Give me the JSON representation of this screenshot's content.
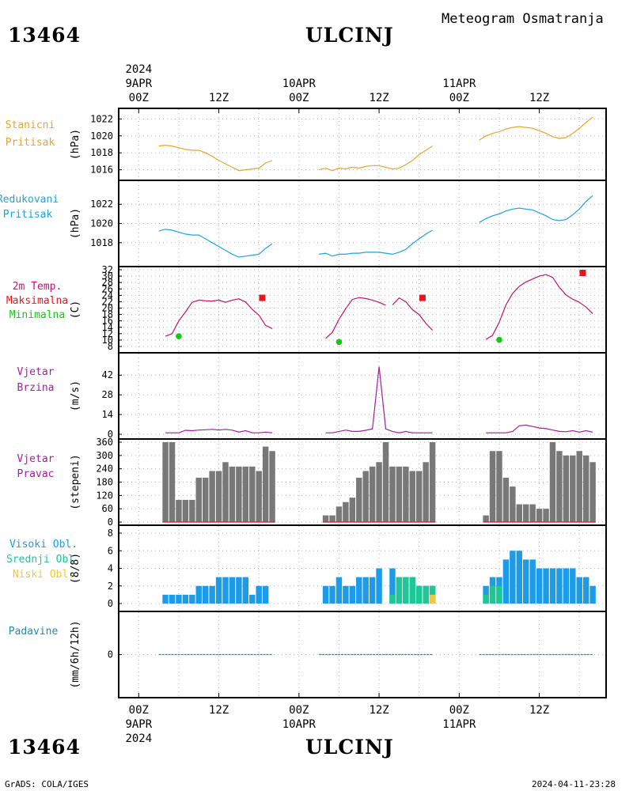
{
  "header": {
    "station_id": "13464",
    "station_name": "ULCINJ",
    "subtitle": "Meteogram Osmatranja"
  },
  "footer": {
    "station_id": "13464",
    "station_name": "ULCINJ",
    "credit": "GrADS: COLA/IGES",
    "timestamp": "2024-04-11-23:28"
  },
  "colors": {
    "station_pressure": "#e8a52c",
    "reduced_pressure": "#1fa3dc",
    "temperature": "#c8106e",
    "tmax": "#e8141e",
    "tmin": "#14c814",
    "wind": "#a01ea0",
    "wind_dir": "#787878",
    "cloud_high": "#1e9be6",
    "cloud_mid": "#1ec896",
    "cloud_low": "#f0c83c",
    "precip": "#1e8cb4"
  },
  "chart_data": [
    {
      "type": "line",
      "panel_label": [
        "Stanicni",
        "Pritisak"
      ],
      "ylabel": "(hPa)",
      "ylim": [
        1015.5,
        1022.5
      ],
      "yticks": [
        1016,
        1018,
        1020,
        1022
      ],
      "x_unit": "hours since 2024-04-09 00Z",
      "segments": [
        {
          "x": [
            3,
            4,
            5,
            6,
            7,
            8,
            9,
            10,
            11,
            12,
            13,
            14,
            15,
            16,
            17,
            18,
            19,
            20
          ],
          "y": [
            1018.8,
            1018.9,
            1018.8,
            1018.6,
            1018.4,
            1018.3,
            1018.3,
            1018.0,
            1017.6,
            1017.1,
            1016.7,
            1016.3,
            1015.9,
            1016.0,
            1016.1,
            1016.2,
            1016.8,
            1017.1
          ]
        },
        {
          "x": [
            27,
            28,
            29,
            30,
            31,
            32,
            33,
            34,
            35,
            36,
            37,
            38,
            39,
            40,
            41,
            42,
            43,
            44
          ],
          "y": [
            1016.0,
            1016.2,
            1015.9,
            1016.2,
            1016.1,
            1016.3,
            1016.2,
            1016.4,
            1016.5,
            1016.5,
            1016.3,
            1016.1,
            1016.2,
            1016.6,
            1017.1,
            1017.8,
            1018.3,
            1018.8
          ]
        },
        {
          "x": [
            51,
            52,
            53,
            54,
            55,
            56,
            57,
            58,
            59,
            60,
            61,
            62,
            63,
            64,
            65,
            66,
            67,
            68
          ],
          "y": [
            1019.5,
            1020.0,
            1020.3,
            1020.5,
            1020.8,
            1021.0,
            1021.1,
            1021.0,
            1020.9,
            1020.6,
            1020.3,
            1019.9,
            1019.7,
            1019.8,
            1020.3,
            1020.9,
            1021.6,
            1022.2
          ]
        }
      ]
    },
    {
      "type": "line",
      "panel_label": [
        "Redukovani",
        "Pritisak"
      ],
      "ylabel": "(hPa)",
      "ylim": [
        1016.5,
        1023.5
      ],
      "yticks": [
        1018,
        1020,
        1022
      ],
      "x_unit": "hours since 2024-04-09 00Z",
      "segments": [
        {
          "x": [
            3,
            4,
            5,
            6,
            7,
            8,
            9,
            10,
            11,
            12,
            13,
            14,
            15,
            16,
            17,
            18,
            19,
            20
          ],
          "y": [
            1019.2,
            1019.4,
            1019.3,
            1019.1,
            1018.9,
            1018.8,
            1018.8,
            1018.4,
            1018.0,
            1017.6,
            1017.2,
            1016.8,
            1016.5,
            1016.6,
            1016.7,
            1016.8,
            1017.4,
            1017.9
          ]
        },
        {
          "x": [
            27,
            28,
            29,
            30,
            31,
            32,
            33,
            34,
            35,
            36,
            37,
            38,
            39,
            40,
            41,
            42,
            43,
            44
          ],
          "y": [
            1016.8,
            1016.9,
            1016.6,
            1016.8,
            1016.8,
            1016.9,
            1016.9,
            1017.0,
            1017.0,
            1017.0,
            1016.9,
            1016.8,
            1017.0,
            1017.3,
            1017.9,
            1018.4,
            1018.9,
            1019.3
          ]
        },
        {
          "x": [
            51,
            52,
            53,
            54,
            55,
            56,
            57,
            58,
            59,
            60,
            61,
            62,
            63,
            64,
            65,
            66,
            67,
            68
          ],
          "y": [
            1020.1,
            1020.5,
            1020.8,
            1021.0,
            1021.3,
            1021.5,
            1021.6,
            1021.5,
            1021.4,
            1021.1,
            1020.8,
            1020.4,
            1020.3,
            1020.4,
            1020.9,
            1021.5,
            1022.3,
            1022.9
          ]
        }
      ]
    },
    {
      "type": "line",
      "panel_label": [
        "2m Temp.",
        "Maksimalna",
        "Minimalna"
      ],
      "ylabel": "(C)",
      "ylim": [
        8,
        32
      ],
      "yticks": [
        8,
        10,
        12,
        14,
        16,
        18,
        20,
        22,
        24,
        26,
        28,
        30,
        32
      ],
      "x_unit": "hours since 2024-04-09 00Z",
      "segments": [
        {
          "x": [
            4,
            5,
            6,
            7,
            8,
            9,
            10,
            11,
            12,
            13,
            14,
            15,
            16,
            17,
            18,
            19,
            20
          ],
          "y": [
            11.2,
            12.0,
            16.0,
            18.8,
            21.8,
            22.5,
            22.3,
            22.2,
            22.5,
            21.8,
            22.5,
            22.9,
            21.9,
            19.6,
            17.8,
            14.6,
            13.6
          ]
        },
        {
          "x": [
            28,
            29,
            30,
            31,
            32,
            33,
            34,
            35,
            36,
            37
          ],
          "y": [
            10.5,
            12.4,
            16.5,
            19.8,
            22.7,
            23.3,
            23.0,
            22.5,
            21.8,
            20.9
          ]
        },
        {
          "x": [
            38,
            39,
            40,
            41,
            42,
            43,
            44
          ],
          "y": [
            21.0,
            23.2,
            22.0,
            19.5,
            18.0,
            15.2,
            13.1
          ]
        },
        {
          "x": [
            52,
            53,
            54,
            55,
            56,
            57,
            58,
            59,
            60,
            61,
            62,
            63,
            64,
            65,
            66,
            67,
            68
          ],
          "y": [
            10.2,
            11.5,
            15.6,
            21.0,
            24.6,
            26.8,
            28.2,
            29.1,
            30.0,
            30.5,
            29.6,
            26.5,
            24.1,
            22.8,
            21.8,
            20.3,
            18.3
          ]
        }
      ],
      "tmax": [
        {
          "x": 18.5,
          "y": 23.2
        },
        {
          "x": 42.5,
          "y": 23.2
        },
        {
          "x": 66.5,
          "y": 31.0
        }
      ],
      "tmin": [
        {
          "x": 6,
          "y": 11.2
        },
        {
          "x": 30,
          "y": 9.4
        },
        {
          "x": 54,
          "y": 10.1
        }
      ]
    },
    {
      "type": "line",
      "panel_label": [
        "Vjetar",
        "Brzina"
      ],
      "ylabel": "(m/s)",
      "ylim": [
        0,
        50
      ],
      "yticks": [
        0,
        14,
        28,
        42
      ],
      "x_unit": "hours since 2024-04-09 00Z",
      "segments": [
        {
          "x": [
            4,
            5,
            6,
            7,
            8,
            9,
            10,
            11,
            12,
            13,
            14,
            15,
            16,
            17,
            18,
            19,
            20
          ],
          "y": [
            1.0,
            1.0,
            1.0,
            2.8,
            2.5,
            3.0,
            3.2,
            3.5,
            3.0,
            3.5,
            2.9,
            1.6,
            2.5,
            1.0,
            1.0,
            1.5,
            1.0
          ]
        },
        {
          "x": [
            28,
            29,
            30,
            31,
            32,
            33,
            34,
            35,
            36,
            37,
            38,
            39,
            40,
            41,
            42,
            43,
            44
          ],
          "y": [
            1.0,
            1.0,
            2.0,
            3.0,
            2.0,
            2.0,
            2.8,
            3.8,
            48.0,
            3.8,
            2.0,
            1.0,
            2.0,
            1.0,
            1.0,
            1.0,
            1.0
          ]
        },
        {
          "x": [
            52,
            53,
            54,
            55,
            56,
            57,
            58,
            59,
            60,
            61,
            62,
            63,
            64,
            65,
            66,
            67,
            68
          ],
          "y": [
            1.0,
            1.0,
            1.0,
            1.0,
            2.0,
            6.0,
            6.5,
            5.5,
            4.5,
            4.0,
            3.0,
            2.0,
            1.8,
            2.5,
            1.5,
            2.5,
            1.5
          ]
        }
      ]
    },
    {
      "type": "bar",
      "panel_label": [
        "Vjetar",
        "Pravac"
      ],
      "ylabel": "(stepeni)",
      "ylim": [
        0,
        360
      ],
      "yticks": [
        0,
        60,
        120,
        180,
        240,
        300,
        360
      ],
      "x_unit": "hours since 2024-04-09 00Z",
      "x": [
        4,
        5,
        6,
        7,
        8,
        9,
        10,
        11,
        12,
        13,
        14,
        15,
        16,
        17,
        18,
        19,
        20,
        28,
        29,
        30,
        31,
        32,
        33,
        34,
        35,
        36,
        37,
        38,
        39,
        40,
        41,
        42,
        43,
        44,
        52,
        53,
        54,
        55,
        56,
        57,
        58,
        59,
        60,
        61,
        62,
        63,
        64,
        65,
        66,
        67,
        68
      ],
      "values": [
        360,
        360,
        100,
        100,
        100,
        200,
        200,
        230,
        230,
        270,
        250,
        250,
        250,
        250,
        230,
        340,
        320,
        30,
        30,
        70,
        90,
        110,
        200,
        230,
        250,
        270,
        360,
        250,
        250,
        250,
        230,
        230,
        270,
        360,
        30,
        320,
        320,
        200,
        160,
        80,
        80,
        80,
        60,
        60,
        360,
        320,
        300,
        300,
        320,
        300,
        270
      ]
    },
    {
      "type": "bar",
      "panel_label": [
        "Visoki Obl.",
        "Srednji Obl.",
        "Niski Obl."
      ],
      "ylabel": "(8/8)",
      "ylim": [
        0,
        8
      ],
      "yticks": [
        0,
        2,
        4,
        6,
        8
      ],
      "x_unit": "hours since 2024-04-09 00Z",
      "x": [
        4,
        5,
        6,
        7,
        8,
        9,
        10,
        11,
        12,
        13,
        14,
        15,
        16,
        17,
        18,
        19,
        20,
        28,
        29,
        30,
        31,
        32,
        33,
        34,
        35,
        36,
        37,
        38,
        39,
        40,
        41,
        42,
        43,
        44,
        52,
        53,
        54,
        55,
        56,
        57,
        58,
        59,
        60,
        61,
        62,
        63,
        64,
        65,
        66,
        67,
        68
      ],
      "series": [
        {
          "name": "Visoki Obl.",
          "values": [
            1,
            1,
            1,
            1,
            1,
            2,
            2,
            2,
            3,
            3,
            3,
            3,
            3,
            1,
            2,
            2,
            null,
            2,
            2,
            3,
            2,
            2,
            3,
            3,
            3,
            4,
            null,
            4,
            3,
            3,
            3,
            2,
            2,
            2,
            2,
            3,
            3,
            5,
            6,
            6,
            5,
            5,
            4,
            4,
            4,
            4,
            4,
            4,
            3,
            3,
            2
          ]
        },
        {
          "name": "Srednji Obl.",
          "values": [
            0,
            0,
            0,
            0,
            0,
            0,
            0,
            0,
            0,
            0,
            0,
            0,
            0,
            0,
            0,
            0,
            null,
            0,
            0,
            0,
            0,
            0,
            0,
            0,
            0,
            0,
            null,
            1,
            3,
            3,
            3,
            2,
            2,
            2,
            1,
            2,
            2,
            0,
            0,
            0,
            0,
            0,
            0,
            0,
            0,
            0,
            0,
            0,
            0,
            0,
            0
          ]
        },
        {
          "name": "Niski Obl.",
          "values": [
            0,
            0,
            0,
            0,
            0,
            0,
            0,
            0,
            0,
            0,
            0,
            0,
            0,
            0,
            0,
            0,
            null,
            0,
            0,
            0,
            0,
            0,
            0,
            0,
            0,
            0,
            null,
            0,
            0,
            0,
            0,
            0,
            0,
            1,
            0,
            0,
            0,
            0,
            0,
            0,
            0,
            0,
            0,
            0,
            0,
            0,
            0,
            0,
            0,
            0,
            0
          ]
        }
      ]
    },
    {
      "type": "bar",
      "panel_label": [
        "Padavine"
      ],
      "ylabel": "(mm/6h/12h)",
      "ylim": [
        -1,
        1
      ],
      "yticks": [
        0
      ],
      "x_unit": "hours since 2024-04-09 00Z",
      "segments": [
        {
          "x": [
            3,
            20
          ],
          "y": [
            0,
            0
          ]
        },
        {
          "x": [
            27,
            44
          ],
          "y": [
            0,
            0
          ]
        },
        {
          "x": [
            51,
            68
          ],
          "y": [
            0,
            0
          ]
        }
      ]
    }
  ],
  "time_axis": {
    "xlim": [
      -3,
      70
    ],
    "top": {
      "year": "2024",
      "ticks": [
        {
          "x": 0,
          "hour": "00Z",
          "date": "9APR"
        },
        {
          "x": 12,
          "hour": "12Z"
        },
        {
          "x": 24,
          "hour": "00Z",
          "date": "10APR"
        },
        {
          "x": 36,
          "hour": "12Z"
        },
        {
          "x": 48,
          "hour": "00Z",
          "date": "11APR"
        },
        {
          "x": 60,
          "hour": "12Z"
        }
      ]
    },
    "bottom": {
      "year": "2024",
      "ticks": [
        {
          "x": 0,
          "hour": "00Z",
          "date": "9APR"
        },
        {
          "x": 12,
          "hour": "12Z"
        },
        {
          "x": 24,
          "hour": "00Z",
          "date": "10APR"
        },
        {
          "x": 36,
          "hour": "12Z"
        },
        {
          "x": 48,
          "hour": "00Z",
          "date": "11APR"
        },
        {
          "x": 60,
          "hour": "12Z"
        }
      ]
    }
  }
}
